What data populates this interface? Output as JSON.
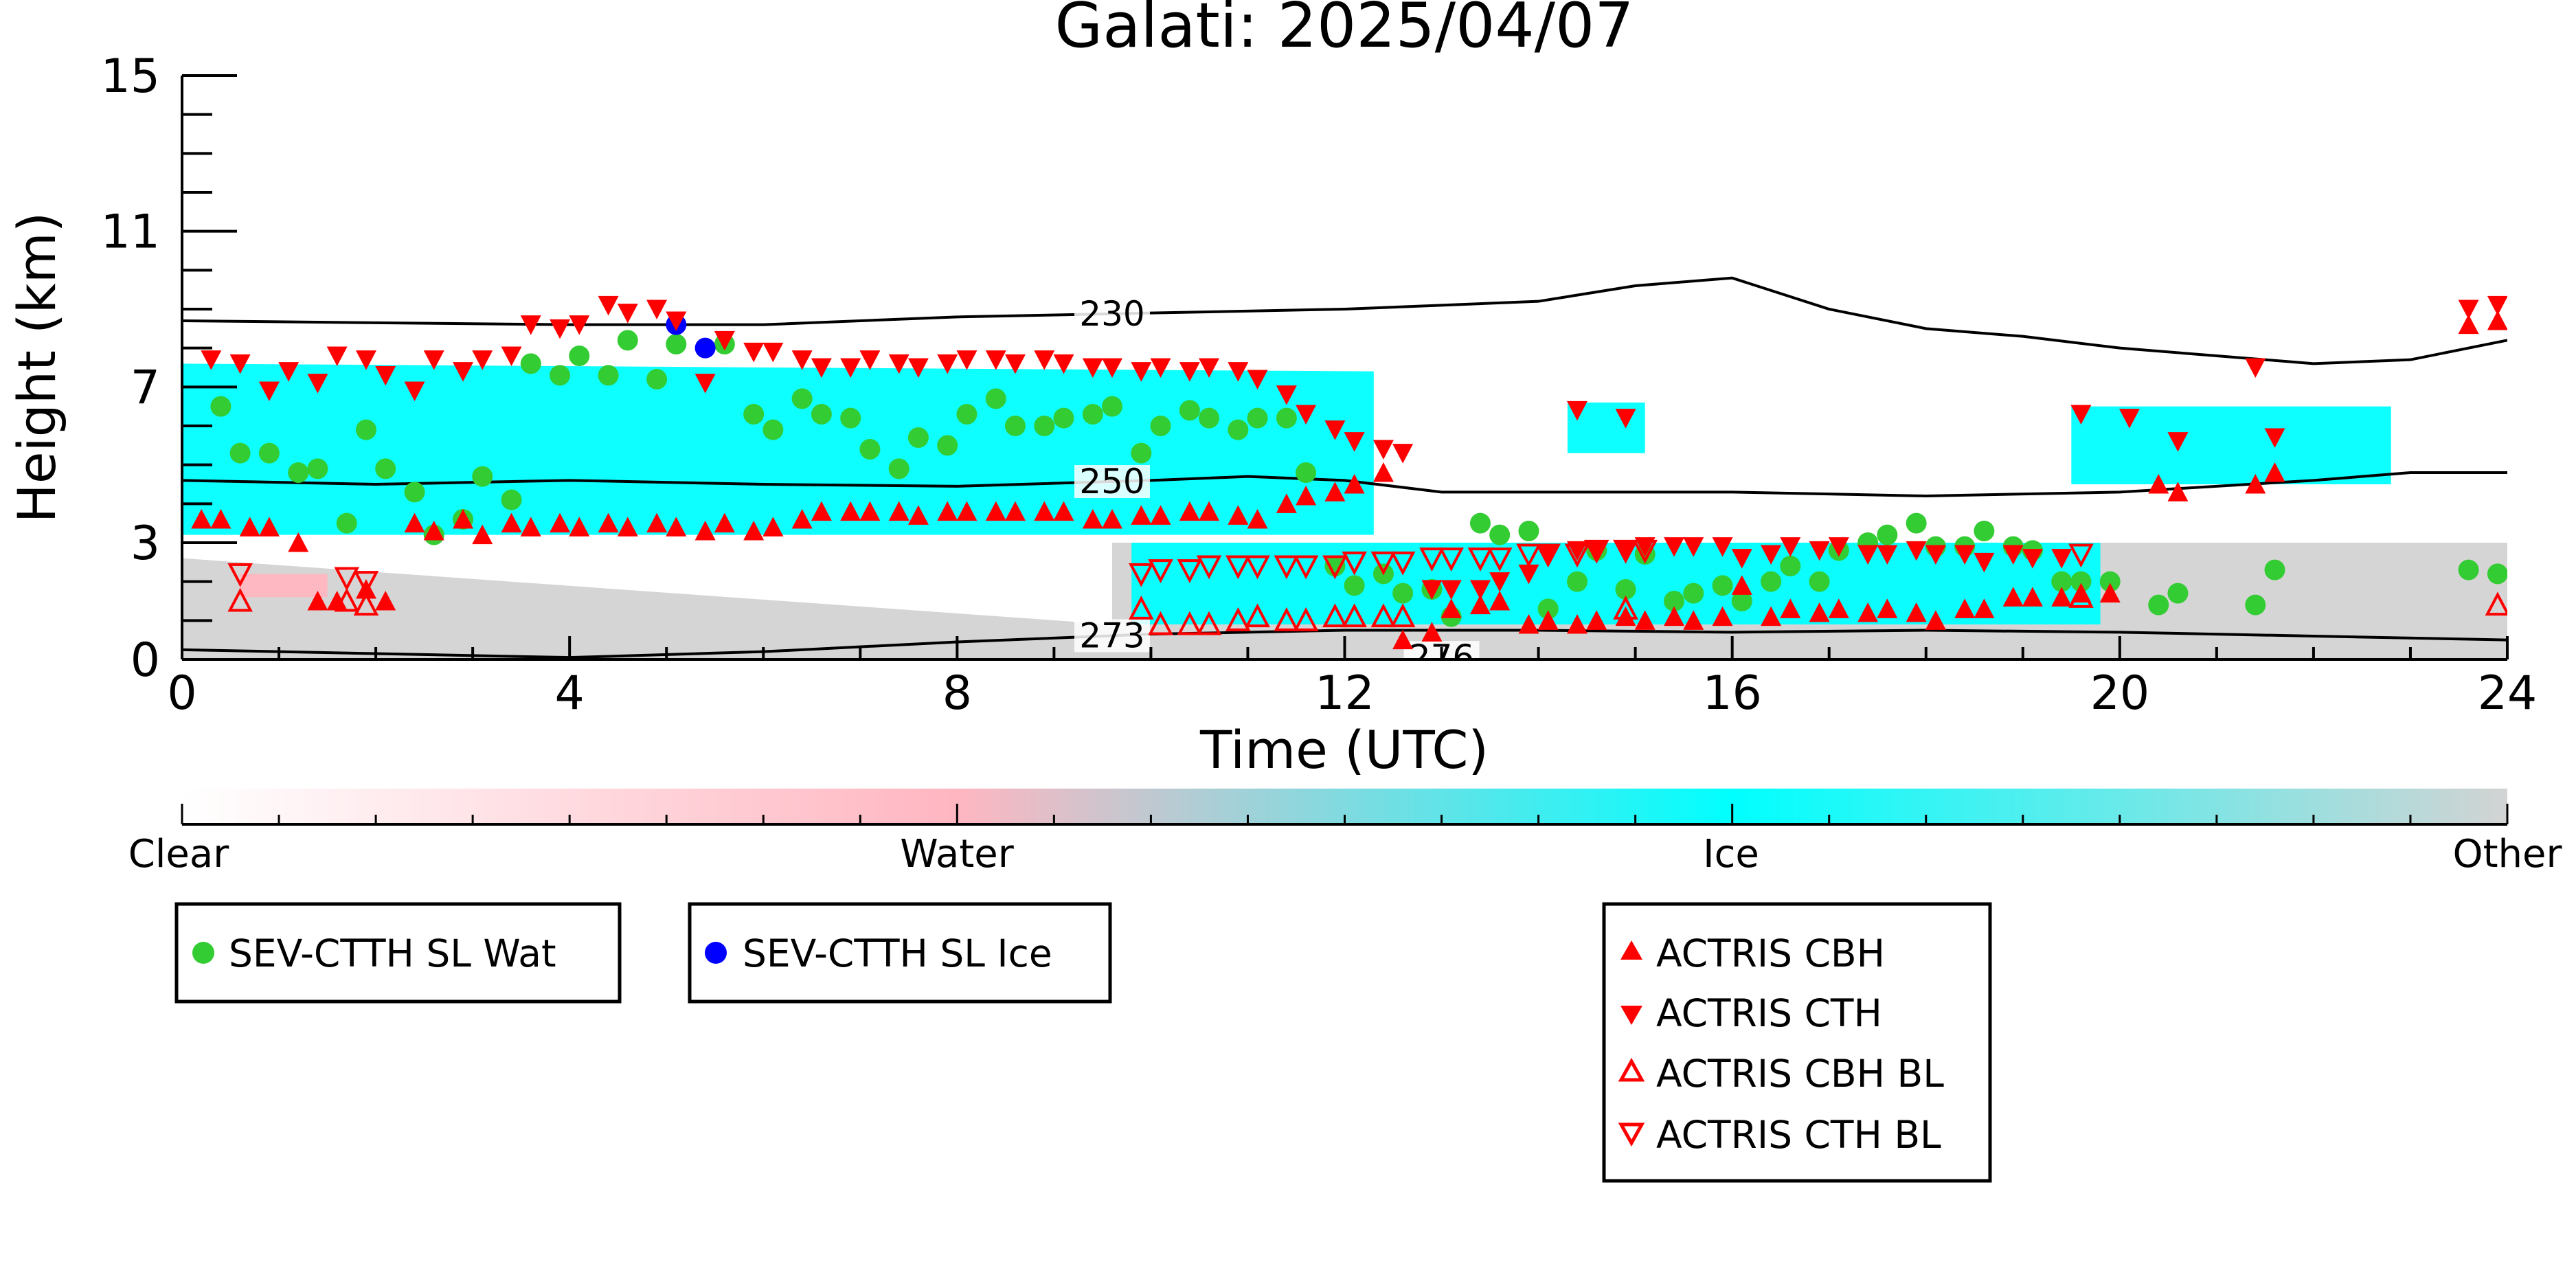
{
  "chart_data": {
    "type": "scatter",
    "title": "Galati: 2025/04/07",
    "xlabel": "Time (UTC)",
    "ylabel": "Height (km)",
    "xlim": [
      0,
      24
    ],
    "ylim": [
      0,
      15
    ],
    "x_ticks": [
      0,
      4,
      8,
      12,
      16,
      20,
      24
    ],
    "y_ticks": [
      0,
      3,
      7,
      11,
      15
    ],
    "grid": false,
    "colorbar": {
      "labels": [
        "Clear",
        "Water",
        "Ice",
        "Other"
      ],
      "colors": {
        "clear": "#ffffff",
        "water": "#ffb6c1",
        "ice": "#00ffff",
        "other": "#d3d3d3"
      }
    },
    "isotherms": [
      {
        "label": "230",
        "x": [
          0,
          2,
          4,
          6,
          8,
          10,
          12,
          13,
          14,
          15,
          16,
          17,
          18,
          19,
          20,
          21,
          22,
          23,
          24
        ],
        "y": [
          8.7,
          8.65,
          8.6,
          8.6,
          8.8,
          8.9,
          9.0,
          9.1,
          9.2,
          9.6,
          9.8,
          9.0,
          8.5,
          8.3,
          8.0,
          7.8,
          7.6,
          7.7,
          8.2
        ]
      },
      {
        "label": "250",
        "x": [
          0,
          2,
          4,
          6,
          8,
          10,
          11,
          12,
          13,
          14,
          16,
          18,
          20,
          22,
          23,
          24
        ],
        "y": [
          4.6,
          4.5,
          4.6,
          4.5,
          4.45,
          4.6,
          4.7,
          4.6,
          4.3,
          4.3,
          4.3,
          4.2,
          4.3,
          4.6,
          4.8,
          4.8
        ]
      },
      {
        "label": "273",
        "x": [
          0,
          2,
          4,
          6,
          8,
          10,
          12,
          14,
          16,
          18,
          20,
          22,
          24
        ],
        "y": [
          0.25,
          0.15,
          0.05,
          0.2,
          0.45,
          0.65,
          0.75,
          0.75,
          0.7,
          0.75,
          0.7,
          0.6,
          0.5
        ]
      },
      {
        "label": "276",
        "x": [
          12.5,
          13.5
        ],
        "y": [
          0.05,
          0.05
        ]
      }
    ],
    "cloud_regions": [
      {
        "phase": "ice",
        "x": [
          0,
          12.3
        ],
        "y_low": [
          3.2,
          3.2
        ],
        "y_high": [
          7.6,
          7.4
        ]
      },
      {
        "phase": "other",
        "x": [
          0,
          9.6
        ],
        "y_low": [
          0,
          0
        ],
        "y_high": [
          2.6,
          0.9
        ]
      },
      {
        "phase": "other",
        "x": [
          9.6,
          24
        ],
        "y_low": [
          0,
          0
        ],
        "y_high": [
          3.0,
          3.0
        ]
      },
      {
        "phase": "ice",
        "x": [
          9.8,
          19.8
        ],
        "y_low": [
          0.9,
          0.9
        ],
        "y_high": [
          3.0,
          3.0
        ]
      },
      {
        "phase": "ice",
        "x": [
          19.5,
          22.8
        ],
        "y_low": [
          4.5,
          4.5
        ],
        "y_high": [
          6.5,
          6.5
        ]
      },
      {
        "phase": "ice",
        "x": [
          14.3,
          15.1
        ],
        "y_low": [
          5.3,
          5.3
        ],
        "y_high": [
          6.6,
          6.6
        ]
      },
      {
        "phase": "water",
        "x": [
          0.6,
          1.5
        ],
        "y_low": [
          1.6,
          1.6
        ],
        "y_high": [
          2.2,
          2.2
        ]
      }
    ],
    "series": [
      {
        "name": "SEV-CTTH SL Wat",
        "marker": "circle",
        "color": "#33cc33",
        "x": [
          0.4,
          0.6,
          0.9,
          1.2,
          1.4,
          1.7,
          1.9,
          2.1,
          2.4,
          2.6,
          2.9,
          3.1,
          3.4,
          3.6,
          3.9,
          4.1,
          4.4,
          4.6,
          4.9,
          5.1,
          5.6,
          5.9,
          6.1,
          6.4,
          6.6,
          6.9,
          7.1,
          7.4,
          7.6,
          7.9,
          8.1,
          8.4,
          8.6,
          8.9,
          9.1,
          9.4,
          9.6,
          9.9,
          10.1,
          10.4,
          10.6,
          10.9,
          11.1,
          11.4,
          11.6,
          11.9,
          12.1,
          12.4,
          12.6,
          12.9,
          13.1,
          13.4,
          13.6,
          13.9,
          14.1,
          14.4,
          14.6,
          14.9,
          15.1,
          15.4,
          15.6,
          15.9,
          16.1,
          16.4,
          16.6,
          16.9,
          17.1,
          17.4,
          17.6,
          17.9,
          18.1,
          18.4,
          18.6,
          18.9,
          19.1,
          19.4,
          19.6,
          19.9,
          20.4,
          20.6,
          21.4,
          21.6,
          23.6,
          23.9
        ],
        "y": [
          6.5,
          5.3,
          5.3,
          4.8,
          4.9,
          3.5,
          5.9,
          4.9,
          4.3,
          3.2,
          3.6,
          4.7,
          4.1,
          7.6,
          7.3,
          7.8,
          7.3,
          8.2,
          7.2,
          8.1,
          8.1,
          6.3,
          5.9,
          6.7,
          6.3,
          6.2,
          5.4,
          4.9,
          5.7,
          5.5,
          6.3,
          6.7,
          6.0,
          6.0,
          6.2,
          6.3,
          6.5,
          5.3,
          6.0,
          6.4,
          6.2,
          5.9,
          6.2,
          6.2,
          4.8,
          2.4,
          1.9,
          2.2,
          1.7,
          1.8,
          1.1,
          3.5,
          3.2,
          3.3,
          1.3,
          2.0,
          2.8,
          1.8,
          2.7,
          1.5,
          1.7,
          1.9,
          1.5,
          2.0,
          2.4,
          2.0,
          2.8,
          3.0,
          3.2,
          3.5,
          2.9,
          2.9,
          3.3,
          2.9,
          2.8,
          2.0,
          2.0,
          2.0,
          1.4,
          1.7,
          1.4,
          2.3,
          2.3,
          2.2
        ]
      },
      {
        "name": "SEV-CTTH SL Ice",
        "marker": "circle",
        "color": "#0000ff",
        "x": [
          5.1,
          5.4
        ],
        "y": [
          8.6,
          8.0
        ]
      },
      {
        "name": "ACTRIS CBH",
        "marker": "triangle-up",
        "color": "#ff0000",
        "filled": true,
        "x": [
          0.2,
          0.4,
          0.7,
          0.9,
          1.2,
          1.4,
          1.6,
          1.9,
          2.1,
          2.4,
          2.6,
          2.9,
          3.1,
          3.4,
          3.6,
          3.9,
          4.1,
          4.4,
          4.6,
          4.9,
          5.1,
          5.4,
          5.6,
          5.9,
          6.1,
          6.4,
          6.6,
          6.9,
          7.1,
          7.4,
          7.6,
          7.9,
          8.1,
          8.4,
          8.6,
          8.9,
          9.1,
          9.4,
          9.6,
          9.9,
          10.1,
          10.4,
          10.6,
          10.9,
          11.1,
          11.4,
          11.6,
          11.9,
          12.1,
          12.4,
          12.6,
          12.9,
          13.1,
          13.4,
          13.6,
          13.9,
          14.1,
          14.4,
          14.6,
          14.9,
          15.1,
          15.4,
          15.6,
          15.9,
          16.1,
          16.4,
          16.6,
          16.9,
          17.1,
          17.4,
          17.6,
          17.9,
          18.1,
          18.4,
          18.6,
          18.9,
          19.1,
          19.4,
          19.6,
          19.9,
          20.4,
          20.6,
          21.4,
          21.6,
          23.6,
          23.9
        ],
        "y": [
          3.6,
          3.6,
          3.4,
          3.4,
          3.0,
          1.5,
          1.5,
          1.8,
          1.5,
          3.5,
          3.3,
          3.6,
          3.2,
          3.5,
          3.4,
          3.5,
          3.4,
          3.5,
          3.4,
          3.5,
          3.4,
          3.3,
          3.5,
          3.3,
          3.4,
          3.6,
          3.8,
          3.8,
          3.8,
          3.8,
          3.7,
          3.8,
          3.8,
          3.8,
          3.8,
          3.8,
          3.8,
          3.6,
          3.6,
          3.7,
          3.7,
          3.8,
          3.8,
          3.7,
          3.6,
          4.0,
          4.2,
          4.3,
          4.5,
          4.8,
          0.5,
          0.7,
          1.3,
          1.4,
          1.5,
          0.9,
          1.0,
          0.9,
          1.0,
          1.1,
          1.0,
          1.1,
          1.0,
          1.1,
          1.9,
          1.1,
          1.3,
          1.2,
          1.3,
          1.2,
          1.3,
          1.2,
          1.0,
          1.3,
          1.3,
          1.6,
          1.6,
          1.6,
          1.7,
          1.7,
          4.5,
          4.3,
          4.5,
          4.8,
          8.6,
          8.7
        ]
      },
      {
        "name": "ACTRIS CTH",
        "marker": "triangle-down",
        "color": "#ff0000",
        "filled": true,
        "x": [
          0.3,
          0.6,
          0.9,
          1.1,
          1.4,
          1.6,
          1.9,
          2.1,
          2.4,
          2.6,
          2.9,
          3.1,
          3.4,
          3.6,
          3.9,
          4.1,
          4.4,
          4.6,
          4.9,
          5.1,
          5.4,
          5.6,
          5.9,
          6.1,
          6.4,
          6.6,
          6.9,
          7.1,
          7.4,
          7.6,
          7.9,
          8.1,
          8.4,
          8.6,
          8.9,
          9.1,
          9.4,
          9.6,
          9.9,
          10.1,
          10.4,
          10.6,
          10.9,
          11.1,
          11.4,
          11.6,
          11.9,
          12.1,
          12.4,
          12.6,
          14.4,
          14.9,
          19.6,
          20.1,
          20.6,
          21.4,
          21.6,
          23.6,
          23.9,
          12.9,
          13.1,
          13.4,
          13.6,
          13.9,
          14.1,
          14.4,
          14.6,
          14.9,
          15.1,
          15.4,
          15.6,
          15.9,
          16.1,
          16.4,
          16.6,
          16.9,
          17.1,
          17.4,
          17.6,
          17.9,
          18.1,
          18.4,
          18.6,
          18.9,
          19.1,
          19.4
        ],
        "y": [
          7.7,
          7.6,
          6.9,
          7.4,
          7.1,
          7.8,
          7.7,
          7.3,
          6.9,
          7.7,
          7.4,
          7.7,
          7.8,
          8.6,
          8.5,
          8.6,
          9.1,
          8.9,
          9.0,
          8.7,
          7.1,
          8.2,
          7.9,
          7.9,
          7.7,
          7.5,
          7.5,
          7.7,
          7.6,
          7.5,
          7.6,
          7.7,
          7.7,
          7.6,
          7.7,
          7.6,
          7.5,
          7.5,
          7.4,
          7.5,
          7.4,
          7.5,
          7.4,
          7.2,
          6.8,
          6.3,
          5.9,
          5.6,
          5.4,
          5.3,
          6.4,
          6.2,
          6.3,
          6.2,
          5.6,
          7.5,
          5.7,
          9.0,
          9.1,
          1.8,
          1.8,
          1.8,
          2.0,
          2.2,
          2.7,
          2.8,
          2.8,
          2.8,
          2.9,
          2.9,
          2.9,
          2.9,
          2.6,
          2.7,
          2.9,
          2.8,
          2.9,
          2.7,
          2.7,
          2.8,
          2.7,
          2.7,
          2.5,
          2.7,
          2.6,
          2.6
        ]
      },
      {
        "name": "ACTRIS CBH BL",
        "marker": "triangle-up",
        "color": "#ff0000",
        "filled": false,
        "x": [
          0.6,
          1.7,
          1.9,
          9.9,
          10.1,
          10.4,
          10.6,
          10.9,
          11.1,
          11.4,
          11.6,
          11.9,
          12.1,
          12.4,
          12.6,
          14.9,
          19.6,
          23.9
        ],
        "y": [
          1.5,
          1.5,
          1.4,
          1.3,
          0.9,
          0.9,
          0.9,
          1.0,
          1.1,
          1.0,
          1.0,
          1.1,
          1.1,
          1.1,
          1.1,
          1.3,
          1.6,
          1.4
        ]
      },
      {
        "name": "ACTRIS CTH BL",
        "marker": "triangle-down",
        "color": "#ff0000",
        "filled": false,
        "x": [
          0.6,
          1.7,
          1.9,
          9.9,
          10.1,
          10.4,
          10.6,
          10.9,
          11.1,
          11.4,
          11.6,
          11.9,
          12.1,
          12.4,
          12.6,
          12.9,
          13.1,
          13.4,
          13.6,
          13.9,
          14.1,
          14.4,
          14.6,
          14.9,
          15.1,
          19.6
        ],
        "y": [
          2.2,
          2.1,
          2.0,
          2.2,
          2.3,
          2.3,
          2.4,
          2.4,
          2.4,
          2.4,
          2.4,
          2.4,
          2.5,
          2.5,
          2.5,
          2.6,
          2.6,
          2.6,
          2.6,
          2.7,
          2.7,
          2.7,
          2.8,
          2.8,
          2.8,
          2.7
        ]
      }
    ]
  }
}
